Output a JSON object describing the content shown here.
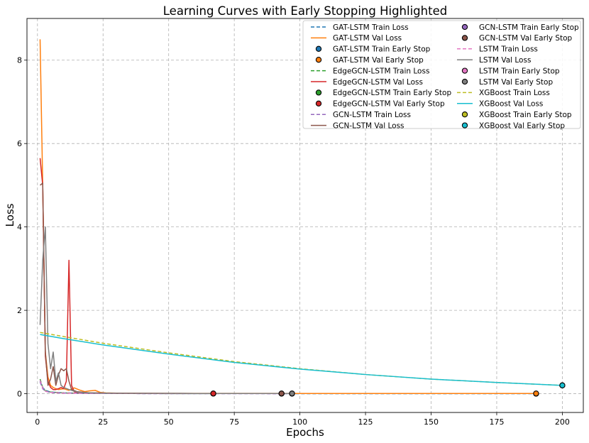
{
  "chart_data": {
    "type": "line",
    "title": "Learning Curves with Early Stopping Highlighted",
    "xlabel": "Epochs",
    "ylabel": "Loss",
    "xlim": [
      -4,
      208
    ],
    "ylim": [
      -0.45,
      9.0
    ],
    "xticks": [
      0,
      25,
      50,
      75,
      100,
      125,
      150,
      175,
      200
    ],
    "yticks": [
      0,
      2,
      4,
      6,
      8
    ],
    "grid": true,
    "legend": {
      "placement": "top-right",
      "columns": 2
    },
    "series": [
      {
        "name": "GAT-LSTM Train Loss",
        "kind": "line",
        "style": "dashed",
        "color": "#1f77b4",
        "points": [
          [
            1,
            0.3
          ],
          [
            2,
            0.15
          ],
          [
            3,
            0.08
          ],
          [
            5,
            0.04
          ],
          [
            10,
            0.02
          ],
          [
            20,
            0.01
          ],
          [
            40,
            0.004
          ],
          [
            100,
            0.002
          ],
          [
            190,
            0.001
          ]
        ]
      },
      {
        "name": "GAT-LSTM Val Loss",
        "kind": "line",
        "style": "solid",
        "color": "#ff7f0e",
        "points": [
          [
            1,
            8.5
          ],
          [
            2,
            5.0
          ],
          [
            3,
            1.0
          ],
          [
            4,
            0.4
          ],
          [
            5,
            0.2
          ],
          [
            6,
            0.15
          ],
          [
            7,
            0.12
          ],
          [
            8,
            0.1
          ],
          [
            10,
            0.12
          ],
          [
            12,
            0.08
          ],
          [
            14,
            0.14
          ],
          [
            16,
            0.09
          ],
          [
            18,
            0.05
          ],
          [
            20,
            0.07
          ],
          [
            22,
            0.08
          ],
          [
            24,
            0.03
          ],
          [
            26,
            0.02
          ],
          [
            30,
            0.015
          ],
          [
            40,
            0.01
          ],
          [
            60,
            0.008
          ],
          [
            100,
            0.006
          ],
          [
            150,
            0.005
          ],
          [
            190,
            0.005
          ]
        ]
      },
      {
        "name": "GAT-LSTM Train Early Stop",
        "kind": "marker",
        "color": "#1f77b4",
        "points": [
          [
            190,
            0.001
          ]
        ]
      },
      {
        "name": "GAT-LSTM Val Early Stop",
        "kind": "marker",
        "color": "#ff7f0e",
        "points": [
          [
            190,
            0.005
          ]
        ]
      },
      {
        "name": "EdgeGCN-LSTM Train Loss",
        "kind": "line",
        "style": "dashed",
        "color": "#2ca02c",
        "points": [
          [
            1,
            0.35
          ],
          [
            2,
            0.15
          ],
          [
            3,
            0.07
          ],
          [
            5,
            0.04
          ],
          [
            10,
            0.02
          ],
          [
            20,
            0.01
          ],
          [
            40,
            0.005
          ],
          [
            67,
            0.003
          ]
        ]
      },
      {
        "name": "EdgeGCN-LSTM Val Loss",
        "kind": "line",
        "style": "solid",
        "color": "#d62728",
        "points": [
          [
            1,
            5.65
          ],
          [
            2,
            5.0
          ],
          [
            3,
            0.9
          ],
          [
            4,
            0.3
          ],
          [
            5,
            0.15
          ],
          [
            6,
            0.1
          ],
          [
            7,
            0.1
          ],
          [
            8,
            0.12
          ],
          [
            9,
            0.15
          ],
          [
            10,
            0.12
          ],
          [
            11,
            0.3
          ],
          [
            12,
            3.2
          ],
          [
            13,
            0.2
          ],
          [
            14,
            0.05
          ],
          [
            15,
            0.03
          ],
          [
            20,
            0.02
          ],
          [
            30,
            0.01
          ],
          [
            50,
            0.006
          ],
          [
            67,
            0.005
          ]
        ]
      },
      {
        "name": "EdgeGCN-LSTM Train Early Stop",
        "kind": "marker",
        "color": "#2ca02c",
        "points": [
          [
            67,
            0.003
          ]
        ]
      },
      {
        "name": "EdgeGCN-LSTM Val Early Stop",
        "kind": "marker",
        "color": "#d62728",
        "points": [
          [
            67,
            0.005
          ]
        ]
      },
      {
        "name": "GCN-LSTM Train Loss",
        "kind": "line",
        "style": "dashed",
        "color": "#9467bd",
        "points": [
          [
            1,
            0.28
          ],
          [
            2,
            0.12
          ],
          [
            3,
            0.06
          ],
          [
            5,
            0.03
          ],
          [
            10,
            0.015
          ],
          [
            20,
            0.008
          ],
          [
            40,
            0.004
          ],
          [
            93,
            0.002
          ]
        ]
      },
      {
        "name": "GCN-LSTM Val Loss",
        "kind": "line",
        "style": "solid",
        "color": "#8c564b",
        "points": [
          [
            1,
            5.0
          ],
          [
            2,
            5.05
          ],
          [
            3,
            1.0
          ],
          [
            4,
            0.2
          ],
          [
            5,
            0.35
          ],
          [
            6,
            0.65
          ],
          [
            7,
            0.2
          ],
          [
            8,
            0.45
          ],
          [
            9,
            0.6
          ],
          [
            10,
            0.55
          ],
          [
            11,
            0.6
          ],
          [
            12,
            0.3
          ],
          [
            13,
            0.1
          ],
          [
            15,
            0.05
          ],
          [
            20,
            0.02
          ],
          [
            30,
            0.01
          ],
          [
            60,
            0.006
          ],
          [
            93,
            0.005
          ]
        ]
      },
      {
        "name": "GCN-LSTM Train Early Stop",
        "kind": "marker",
        "color": "#9467bd",
        "points": [
          [
            93,
            0.002
          ]
        ]
      },
      {
        "name": "GCN-LSTM Val Early Stop",
        "kind": "marker",
        "color": "#8c564b",
        "points": [
          [
            93,
            0.005
          ]
        ]
      },
      {
        "name": "LSTM Train Loss",
        "kind": "line",
        "style": "dashed",
        "color": "#e377c2",
        "points": [
          [
            1,
            0.32
          ],
          [
            2,
            0.14
          ],
          [
            3,
            0.06
          ],
          [
            5,
            0.03
          ],
          [
            10,
            0.015
          ],
          [
            20,
            0.008
          ],
          [
            40,
            0.004
          ],
          [
            97,
            0.002
          ]
        ]
      },
      {
        "name": "LSTM Val Loss",
        "kind": "line",
        "style": "solid",
        "color": "#7f7f7f",
        "points": [
          [
            1,
            1.65
          ],
          [
            2,
            3.2
          ],
          [
            3,
            4.0
          ],
          [
            4,
            1.2
          ],
          [
            5,
            0.6
          ],
          [
            6,
            1.0
          ],
          [
            7,
            0.3
          ],
          [
            8,
            0.5
          ],
          [
            9,
            0.2
          ],
          [
            10,
            0.15
          ],
          [
            12,
            0.1
          ],
          [
            14,
            0.06
          ],
          [
            16,
            0.03
          ],
          [
            20,
            0.02
          ],
          [
            30,
            0.01
          ],
          [
            60,
            0.006
          ],
          [
            97,
            0.005
          ]
        ]
      },
      {
        "name": "LSTM Train Early Stop",
        "kind": "marker",
        "color": "#e377c2",
        "points": [
          [
            97,
            0.002
          ]
        ]
      },
      {
        "name": "LSTM Val Early Stop",
        "kind": "marker",
        "color": "#7f7f7f",
        "points": [
          [
            97,
            0.005
          ]
        ]
      },
      {
        "name": "XGBoost Train Loss",
        "kind": "line",
        "style": "dashed",
        "color": "#bcbd22",
        "points": [
          [
            1,
            1.47
          ],
          [
            10,
            1.37
          ],
          [
            25,
            1.21
          ],
          [
            50,
            0.98
          ],
          [
            75,
            0.77
          ],
          [
            100,
            0.6
          ],
          [
            125,
            0.46
          ],
          [
            150,
            0.35
          ],
          [
            175,
            0.27
          ],
          [
            200,
            0.2
          ]
        ]
      },
      {
        "name": "XGBoost Val Loss",
        "kind": "line",
        "style": "solid",
        "color": "#17becf",
        "points": [
          [
            1,
            1.42
          ],
          [
            10,
            1.32
          ],
          [
            25,
            1.17
          ],
          [
            50,
            0.95
          ],
          [
            75,
            0.75
          ],
          [
            100,
            0.59
          ],
          [
            125,
            0.46
          ],
          [
            150,
            0.35
          ],
          [
            175,
            0.27
          ],
          [
            200,
            0.2
          ]
        ]
      },
      {
        "name": "XGBoost Train Early Stop",
        "kind": "marker",
        "color": "#bcbd22",
        "points": [
          [
            200,
            0.2
          ]
        ]
      },
      {
        "name": "XGBoost Val Early Stop",
        "kind": "marker",
        "color": "#17becf",
        "points": [
          [
            200,
            0.2
          ]
        ]
      }
    ]
  }
}
